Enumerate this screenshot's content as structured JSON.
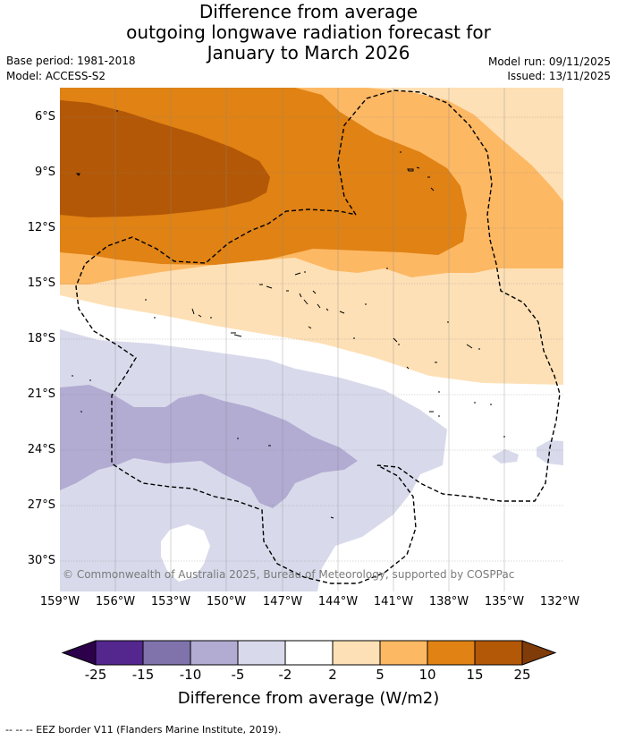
{
  "title": {
    "line1": "Difference from average",
    "line2": "outgoing longwave radiation forecast for",
    "line3": "January to March 2026"
  },
  "meta": {
    "base_period": "Base period: 1981-2018",
    "model": "Model: ACCESS-S2",
    "model_run": "Model run: 09/11/2025",
    "issued": "Issued: 13/11/2025"
  },
  "axes": {
    "latitudes": [
      "6°S",
      "9°S",
      "12°S",
      "15°S",
      "18°S",
      "21°S",
      "24°S",
      "27°S",
      "30°S"
    ],
    "longitudes": [
      "159°W",
      "156°W",
      "153°W",
      "150°W",
      "147°W",
      "144°W",
      "141°W",
      "138°W",
      "135°W",
      "132°W"
    ]
  },
  "copyright": "© Commonwealth of Australia 2025, Bureau of Meteorology, supported by COSPPac",
  "colorbar": {
    "labels": [
      "-25",
      "-15",
      "-10",
      "-5",
      "-2",
      "2",
      "5",
      "10",
      "15",
      "25"
    ],
    "colors": [
      "#54278f",
      "#8073ac",
      "#b2abd2",
      "#d8daeb",
      "#ffffff",
      "#fee0b6",
      "#fdb863",
      "#e08214",
      "#b35806"
    ],
    "under_color": "#2d004b",
    "over_color": "#7f3b08",
    "title": "Difference from average (W/m2)"
  },
  "footer": "--  --  -- EEZ border V11 (Flanders Marine Institute, 2019).",
  "colors": {
    "neg_10_to_5": "#b2abd2",
    "neg_5_to_2": "#d8daeb",
    "pos_2_to_5": "#fee0b6",
    "pos_5_to_10": "#fdb863",
    "pos_10_to_15": "#e08214",
    "pos_15_to_25": "#b35806"
  }
}
